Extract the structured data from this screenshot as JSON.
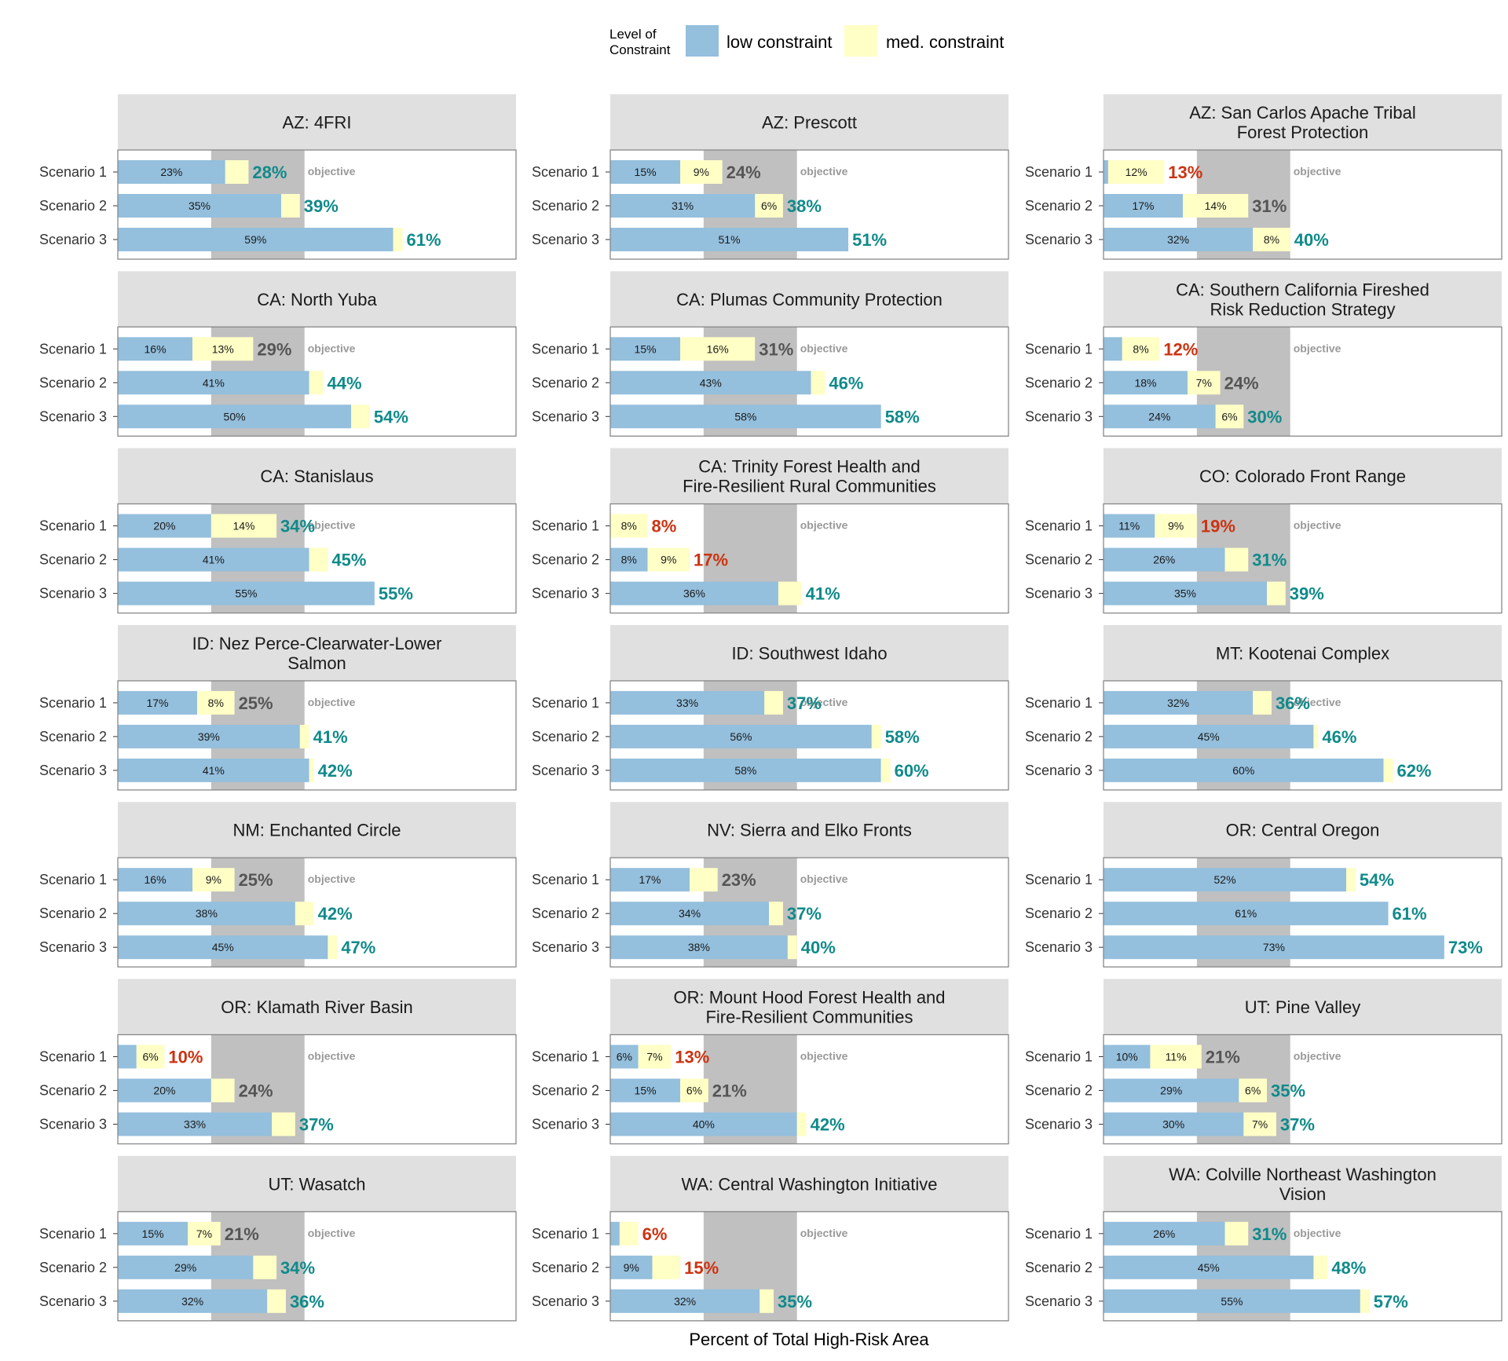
{
  "legend": {
    "title_line1": "Level of",
    "title_line2": "Constraint",
    "items": [
      {
        "label": "low constraint",
        "color": "#94bfdd"
      },
      {
        "label": "med. constraint",
        "color": "#ffffc6"
      }
    ]
  },
  "xlabel": "Percent of Total High-Risk Area",
  "objective_label": "objective",
  "colors": {
    "low": "#94bfdd",
    "med": "#ffffc6",
    "objective_band": "#c0c0c0",
    "strip_bg": "#e0e0e0",
    "total_met": "#108a8a",
    "total_near": "#555555",
    "total_low": "#cc3311"
  },
  "chart_data": {
    "type": "bar",
    "orientation": "horizontal",
    "stacked": true,
    "x_unit": "percent",
    "xlim": [
      0,
      76
    ],
    "objective_range": [
      20,
      40
    ],
    "scenarios": [
      "Scenario 1",
      "Scenario 2",
      "Scenario 3"
    ],
    "series_names": [
      "low constraint",
      "med. constraint"
    ],
    "panels": [
      {
        "title": [
          "AZ: 4FRI"
        ],
        "rows": [
          {
            "low": 23,
            "med": 5,
            "total": "28%",
            "low_label": "23%",
            "med_label": "",
            "status": "met"
          },
          {
            "low": 35,
            "med": 4,
            "total": "39%",
            "low_label": "35%",
            "med_label": "",
            "status": "met"
          },
          {
            "low": 59,
            "med": 2,
            "total": "61%",
            "low_label": "59%",
            "med_label": "",
            "status": "met"
          }
        ]
      },
      {
        "title": [
          "AZ: Prescott"
        ],
        "rows": [
          {
            "low": 15,
            "med": 9,
            "total": "24%",
            "low_label": "15%",
            "med_label": "9%",
            "status": "near"
          },
          {
            "low": 31,
            "med": 6,
            "total": "38%",
            "low_label": "31%",
            "med_label": "6%",
            "status": "met"
          },
          {
            "low": 51,
            "med": 0,
            "total": "51%",
            "low_label": "51%",
            "med_label": "",
            "status": "met"
          }
        ]
      },
      {
        "title": [
          "AZ: San Carlos Apache Tribal",
          "Forest Protection"
        ],
        "rows": [
          {
            "low": 1,
            "med": 12,
            "total": "13%",
            "low_label": "",
            "med_label": "12%",
            "status": "low"
          },
          {
            "low": 17,
            "med": 14,
            "total": "31%",
            "low_label": "17%",
            "med_label": "14%",
            "status": "near"
          },
          {
            "low": 32,
            "med": 8,
            "total": "40%",
            "low_label": "32%",
            "med_label": "8%",
            "status": "met"
          }
        ]
      },
      {
        "title": [
          "CA: North Yuba"
        ],
        "rows": [
          {
            "low": 16,
            "med": 13,
            "total": "29%",
            "low_label": "16%",
            "med_label": "13%",
            "status": "near"
          },
          {
            "low": 41,
            "med": 3,
            "total": "44%",
            "low_label": "41%",
            "med_label": "",
            "status": "met"
          },
          {
            "low": 50,
            "med": 4,
            "total": "54%",
            "low_label": "50%",
            "med_label": "",
            "status": "met"
          }
        ]
      },
      {
        "title": [
          "CA: Plumas Community Protection"
        ],
        "rows": [
          {
            "low": 15,
            "med": 16,
            "total": "31%",
            "low_label": "15%",
            "med_label": "16%",
            "status": "near"
          },
          {
            "low": 43,
            "med": 3,
            "total": "46%",
            "low_label": "43%",
            "med_label": "",
            "status": "met"
          },
          {
            "low": 58,
            "med": 0,
            "total": "58%",
            "low_label": "58%",
            "med_label": "",
            "status": "met"
          }
        ]
      },
      {
        "title": [
          "CA: Southern California Fireshed",
          "Risk Reduction Strategy"
        ],
        "rows": [
          {
            "low": 4,
            "med": 8,
            "total": "12%",
            "low_label": "",
            "med_label": "8%",
            "status": "low"
          },
          {
            "low": 18,
            "med": 7,
            "total": "24%",
            "low_label": "18%",
            "med_label": "7%",
            "status": "near"
          },
          {
            "low": 24,
            "med": 6,
            "total": "30%",
            "low_label": "24%",
            "med_label": "6%",
            "status": "met"
          }
        ]
      },
      {
        "title": [
          "CA: Stanislaus"
        ],
        "rows": [
          {
            "low": 20,
            "med": 14,
            "total": "34%",
            "low_label": "20%",
            "med_label": "14%",
            "status": "met"
          },
          {
            "low": 41,
            "med": 4,
            "total": "45%",
            "low_label": "41%",
            "med_label": "",
            "status": "met"
          },
          {
            "low": 55,
            "med": 0,
            "total": "55%",
            "low_label": "55%",
            "med_label": "",
            "status": "met"
          }
        ]
      },
      {
        "title": [
          "CA: Trinity Forest Health and",
          "Fire-Resilient Rural Communities"
        ],
        "rows": [
          {
            "low": 0,
            "med": 8,
            "total": "8%",
            "low_label": "",
            "med_label": "8%",
            "status": "low"
          },
          {
            "low": 8,
            "med": 9,
            "total": "17%",
            "low_label": "8%",
            "med_label": "9%",
            "status": "low"
          },
          {
            "low": 36,
            "med": 5,
            "total": "41%",
            "low_label": "36%",
            "med_label": "",
            "status": "met"
          }
        ]
      },
      {
        "title": [
          "CO: Colorado Front Range"
        ],
        "rows": [
          {
            "low": 11,
            "med": 9,
            "total": "19%",
            "low_label": "11%",
            "med_label": "9%",
            "status": "low"
          },
          {
            "low": 26,
            "med": 5,
            "total": "31%",
            "low_label": "26%",
            "med_label": "",
            "status": "met"
          },
          {
            "low": 35,
            "med": 4,
            "total": "39%",
            "low_label": "35%",
            "med_label": "",
            "status": "met"
          }
        ]
      },
      {
        "title": [
          "ID: Nez Perce-Clearwater-Lower",
          "Salmon"
        ],
        "rows": [
          {
            "low": 17,
            "med": 8,
            "total": "25%",
            "low_label": "17%",
            "med_label": "8%",
            "status": "near"
          },
          {
            "low": 39,
            "med": 2,
            "total": "41%",
            "low_label": "39%",
            "med_label": "",
            "status": "met"
          },
          {
            "low": 41,
            "med": 1,
            "total": "42%",
            "low_label": "41%",
            "med_label": "",
            "status": "met"
          }
        ]
      },
      {
        "title": [
          "ID: Southwest Idaho"
        ],
        "rows": [
          {
            "low": 33,
            "med": 4,
            "total": "37%",
            "low_label": "33%",
            "med_label": "",
            "status": "met"
          },
          {
            "low": 56,
            "med": 2,
            "total": "58%",
            "low_label": "56%",
            "med_label": "",
            "status": "met"
          },
          {
            "low": 58,
            "med": 2,
            "total": "60%",
            "low_label": "58%",
            "med_label": "",
            "status": "met"
          }
        ]
      },
      {
        "title": [
          "MT: Kootenai Complex"
        ],
        "rows": [
          {
            "low": 32,
            "med": 4,
            "total": "36%",
            "low_label": "32%",
            "med_label": "",
            "status": "met"
          },
          {
            "low": 45,
            "med": 1,
            "total": "46%",
            "low_label": "45%",
            "med_label": "",
            "status": "met"
          },
          {
            "low": 60,
            "med": 2,
            "total": "62%",
            "low_label": "60%",
            "med_label": "",
            "status": "met"
          }
        ]
      },
      {
        "title": [
          "NM: Enchanted Circle"
        ],
        "rows": [
          {
            "low": 16,
            "med": 9,
            "total": "25%",
            "low_label": "16%",
            "med_label": "9%",
            "status": "near"
          },
          {
            "low": 38,
            "med": 4,
            "total": "42%",
            "low_label": "38%",
            "med_label": "",
            "status": "met"
          },
          {
            "low": 45,
            "med": 2,
            "total": "47%",
            "low_label": "45%",
            "med_label": "",
            "status": "met"
          }
        ]
      },
      {
        "title": [
          "NV: Sierra and Elko Fronts"
        ],
        "rows": [
          {
            "low": 17,
            "med": 6,
            "total": "23%",
            "low_label": "17%",
            "med_label": "",
            "status": "near"
          },
          {
            "low": 34,
            "med": 3,
            "total": "37%",
            "low_label": "34%",
            "med_label": "",
            "status": "met"
          },
          {
            "low": 38,
            "med": 2,
            "total": "40%",
            "low_label": "38%",
            "med_label": "",
            "status": "met"
          }
        ]
      },
      {
        "title": [
          "OR: Central Oregon"
        ],
        "rows": [
          {
            "low": 52,
            "med": 2,
            "total": "54%",
            "low_label": "52%",
            "med_label": "",
            "status": "met"
          },
          {
            "low": 61,
            "med": 0,
            "total": "61%",
            "low_label": "61%",
            "med_label": "",
            "status": "met"
          },
          {
            "low": 73,
            "med": 0,
            "total": "73%",
            "low_label": "73%",
            "med_label": "",
            "status": "met"
          }
        ]
      },
      {
        "title": [
          "OR: Klamath River Basin"
        ],
        "rows": [
          {
            "low": 4,
            "med": 6,
            "total": "10%",
            "low_label": "",
            "med_label": "6%",
            "status": "low"
          },
          {
            "low": 20,
            "med": 5,
            "total": "24%",
            "low_label": "20%",
            "med_label": "",
            "status": "near"
          },
          {
            "low": 33,
            "med": 5,
            "total": "37%",
            "low_label": "33%",
            "med_label": "",
            "status": "met"
          }
        ]
      },
      {
        "title": [
          "OR: Mount Hood Forest Health and",
          "Fire-Resilient Communities"
        ],
        "rows": [
          {
            "low": 6,
            "med": 7,
            "total": "13%",
            "low_label": "6%",
            "med_label": "7%",
            "status": "low"
          },
          {
            "low": 15,
            "med": 6,
            "total": "21%",
            "low_label": "15%",
            "med_label": "6%",
            "status": "near"
          },
          {
            "low": 40,
            "med": 2,
            "total": "42%",
            "low_label": "40%",
            "med_label": "",
            "status": "met"
          }
        ]
      },
      {
        "title": [
          "UT: Pine Valley"
        ],
        "rows": [
          {
            "low": 10,
            "med": 11,
            "total": "21%",
            "low_label": "10%",
            "med_label": "11%",
            "status": "near"
          },
          {
            "low": 29,
            "med": 6,
            "total": "35%",
            "low_label": "29%",
            "med_label": "6%",
            "status": "met"
          },
          {
            "low": 30,
            "med": 7,
            "total": "37%",
            "low_label": "30%",
            "med_label": "7%",
            "status": "met"
          }
        ]
      },
      {
        "title": [
          "UT: Wasatch"
        ],
        "rows": [
          {
            "low": 15,
            "med": 7,
            "total": "21%",
            "low_label": "15%",
            "med_label": "7%",
            "status": "near"
          },
          {
            "low": 29,
            "med": 5,
            "total": "34%",
            "low_label": "29%",
            "med_label": "",
            "status": "met"
          },
          {
            "low": 32,
            "med": 4,
            "total": "36%",
            "low_label": "32%",
            "med_label": "",
            "status": "met"
          }
        ]
      },
      {
        "title": [
          "WA: Central Washington Initiative"
        ],
        "rows": [
          {
            "low": 2,
            "med": 4,
            "total": "6%",
            "low_label": "",
            "med_label": "",
            "status": "low"
          },
          {
            "low": 9,
            "med": 6,
            "total": "15%",
            "low_label": "9%",
            "med_label": "",
            "status": "low"
          },
          {
            "low": 32,
            "med": 3,
            "total": "35%",
            "low_label": "32%",
            "med_label": "",
            "status": "met"
          }
        ]
      },
      {
        "title": [
          "WA: Colville Northeast Washington",
          "Vision"
        ],
        "rows": [
          {
            "low": 26,
            "med": 5,
            "total": "31%",
            "low_label": "26%",
            "med_label": "",
            "status": "met"
          },
          {
            "low": 45,
            "med": 3,
            "total": "48%",
            "low_label": "45%",
            "med_label": "",
            "status": "met"
          },
          {
            "low": 55,
            "med": 2,
            "total": "57%",
            "low_label": "55%",
            "med_label": "",
            "status": "met"
          }
        ]
      }
    ]
  }
}
